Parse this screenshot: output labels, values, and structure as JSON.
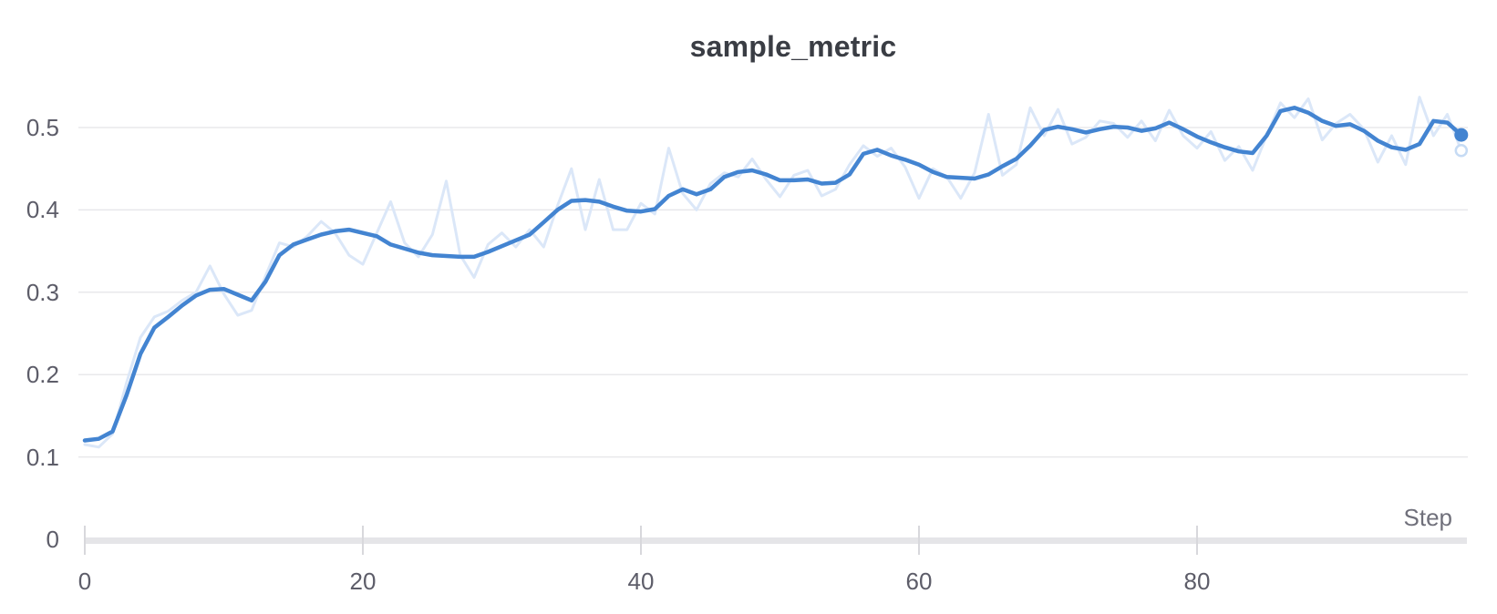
{
  "chart": {
    "title": "sample_metric",
    "x_axis_label": "Step",
    "colors": {
      "smoothed_line": "#4384d1",
      "raw_line": "#dbe7f8",
      "raw_end_ring": "#c6dbf4",
      "gridline": "#e8e8eb",
      "axis_bar": "#e5e5e8",
      "tick_mark": "#d8d8dc",
      "tick_label": "#5d5d69",
      "title_text": "#3a3d44",
      "step_label": "#70707b"
    }
  },
  "chart_data": {
    "type": "line",
    "title": "sample_metric",
    "xlabel": "Step",
    "ylabel": "",
    "grid": "horizontal",
    "legend": "none",
    "x_start": 0,
    "x_step": 1,
    "x_range": [
      0,
      99
    ],
    "ylim": [
      0,
      0.55
    ],
    "x_tick_values": [
      0,
      20,
      40,
      60,
      80
    ],
    "y_tick_values": [
      0,
      0.1,
      0.2,
      0.3,
      0.4,
      0.5
    ],
    "y_tick_labels": [
      "0",
      "0.1",
      "0.2",
      "0.3",
      "0.4",
      "0.5"
    ],
    "x_tick_labels": [
      "0",
      "20",
      "40",
      "60",
      "80"
    ],
    "series": [
      {
        "name": "sample_metric (raw)",
        "role": "raw",
        "color": "#dbe7f8",
        "values": [
          0.115,
          0.112,
          0.128,
          0.19,
          0.245,
          0.27,
          0.277,
          0.29,
          0.3,
          0.332,
          0.298,
          0.272,
          0.278,
          0.32,
          0.36,
          0.355,
          0.368,
          0.386,
          0.372,
          0.345,
          0.334,
          0.372,
          0.41,
          0.36,
          0.343,
          0.37,
          0.435,
          0.345,
          0.318,
          0.358,
          0.372,
          0.355,
          0.376,
          0.355,
          0.405,
          0.45,
          0.376,
          0.437,
          0.376,
          0.376,
          0.408,
          0.395,
          0.475,
          0.42,
          0.4,
          0.432,
          0.445,
          0.44,
          0.462,
          0.437,
          0.416,
          0.442,
          0.448,
          0.417,
          0.425,
          0.455,
          0.478,
          0.465,
          0.475,
          0.452,
          0.414,
          0.45,
          0.44,
          0.414,
          0.445,
          0.516,
          0.442,
          0.455,
          0.524,
          0.49,
          0.522,
          0.48,
          0.488,
          0.508,
          0.505,
          0.488,
          0.508,
          0.484,
          0.521,
          0.49,
          0.475,
          0.495,
          0.46,
          0.477,
          0.448,
          0.49,
          0.53,
          0.512,
          0.535,
          0.485,
          0.505,
          0.516,
          0.498,
          0.458,
          0.49,
          0.455,
          0.537,
          0.49,
          0.516,
          0.472
        ]
      },
      {
        "name": "sample_metric (smoothed)",
        "role": "smoothed",
        "color": "#4384d1",
        "values": [
          0.12,
          0.122,
          0.131,
          0.175,
          0.225,
          0.257,
          0.27,
          0.284,
          0.296,
          0.303,
          0.304,
          0.297,
          0.29,
          0.313,
          0.345,
          0.358,
          0.364,
          0.37,
          0.374,
          0.376,
          0.372,
          0.368,
          0.358,
          0.353,
          0.348,
          0.345,
          0.344,
          0.343,
          0.343,
          0.349,
          0.356,
          0.363,
          0.37,
          0.385,
          0.4,
          0.411,
          0.412,
          0.41,
          0.404,
          0.399,
          0.398,
          0.401,
          0.417,
          0.425,
          0.419,
          0.425,
          0.44,
          0.446,
          0.448,
          0.443,
          0.436,
          0.436,
          0.437,
          0.432,
          0.433,
          0.443,
          0.468,
          0.473,
          0.466,
          0.461,
          0.455,
          0.446,
          0.44,
          0.439,
          0.438,
          0.443,
          0.453,
          0.462,
          0.478,
          0.497,
          0.501,
          0.498,
          0.494,
          0.498,
          0.501,
          0.5,
          0.496,
          0.499,
          0.506,
          0.498,
          0.489,
          0.482,
          0.476,
          0.471,
          0.469,
          0.49,
          0.52,
          0.524,
          0.518,
          0.508,
          0.502,
          0.504,
          0.496,
          0.484,
          0.476,
          0.473,
          0.48,
          0.508,
          0.506,
          0.491
        ]
      }
    ]
  }
}
